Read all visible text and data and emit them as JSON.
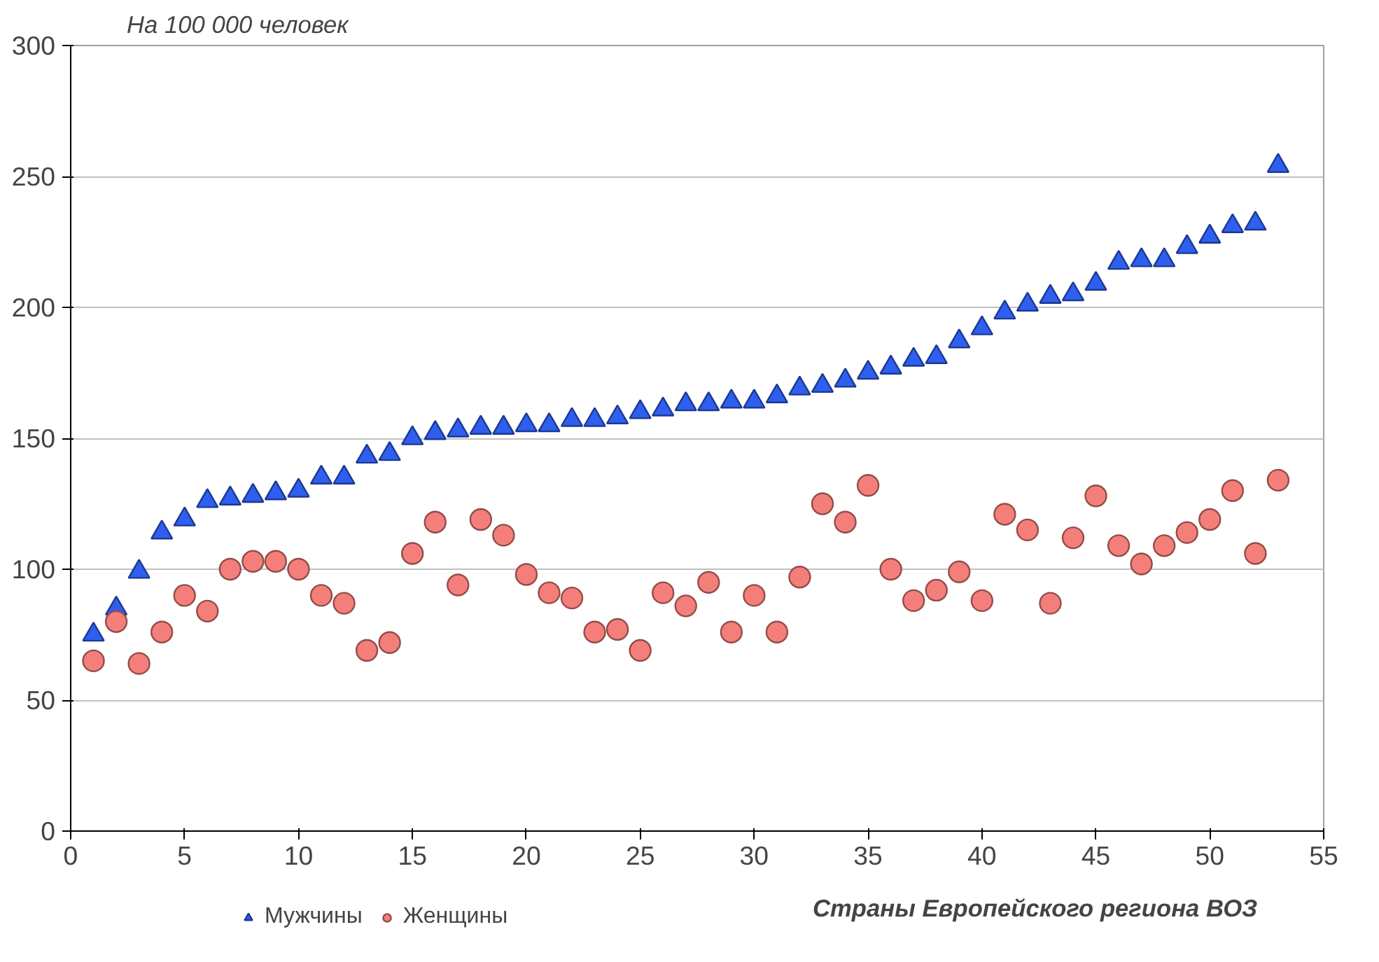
{
  "chart_data": {
    "type": "scatter",
    "ylabel": "На 100 000 человек",
    "xlabel": "Страны Европейского региона ВОЗ",
    "x": [
      1,
      2,
      3,
      4,
      5,
      6,
      7,
      8,
      9,
      10,
      11,
      12,
      13,
      14,
      15,
      16,
      17,
      18,
      19,
      20,
      21,
      22,
      23,
      24,
      25,
      26,
      27,
      28,
      29,
      30,
      31,
      32,
      33,
      34,
      35,
      36,
      37,
      38,
      39,
      40,
      41,
      42,
      43,
      44,
      45,
      46,
      47,
      48,
      49,
      50,
      51,
      52,
      53
    ],
    "xlim": [
      0,
      55
    ],
    "xticks": [
      0,
      5,
      10,
      15,
      20,
      25,
      30,
      35,
      40,
      45,
      50,
      55
    ],
    "ylim": [
      0,
      300
    ],
    "yticks": [
      0,
      50,
      100,
      150,
      200,
      250,
      300
    ],
    "grid": "y",
    "legend": "bottom left",
    "series": [
      {
        "name": "Мужчины",
        "color": "#2f5ff0",
        "marker": "triangle",
        "values": [
          75,
          85,
          99,
          114,
          119,
          126,
          127,
          128,
          129,
          130,
          135,
          135,
          143,
          144,
          150,
          152,
          153,
          154,
          154,
          155,
          155,
          157,
          157,
          158,
          160,
          161,
          163,
          163,
          164,
          164,
          166,
          169,
          170,
          172,
          175,
          177,
          180,
          181,
          187,
          192,
          198,
          201,
          204,
          205,
          209,
          217,
          218,
          218,
          223,
          227,
          231,
          232,
          254
        ]
      },
      {
        "name": "Женщины",
        "color": "#f47f7a",
        "marker": "circle",
        "values": [
          65,
          80,
          64,
          76,
          90,
          84,
          100,
          103,
          103,
          100,
          90,
          87,
          69,
          72,
          106,
          118,
          94,
          119,
          113,
          98,
          91,
          89,
          76,
          77,
          69,
          91,
          86,
          95,
          76,
          90,
          76,
          97,
          125,
          118,
          132,
          100,
          88,
          92,
          99,
          88,
          121,
          115,
          87,
          112,
          128,
          109,
          102,
          109,
          114,
          119,
          130,
          106,
          134
        ]
      }
    ]
  }
}
